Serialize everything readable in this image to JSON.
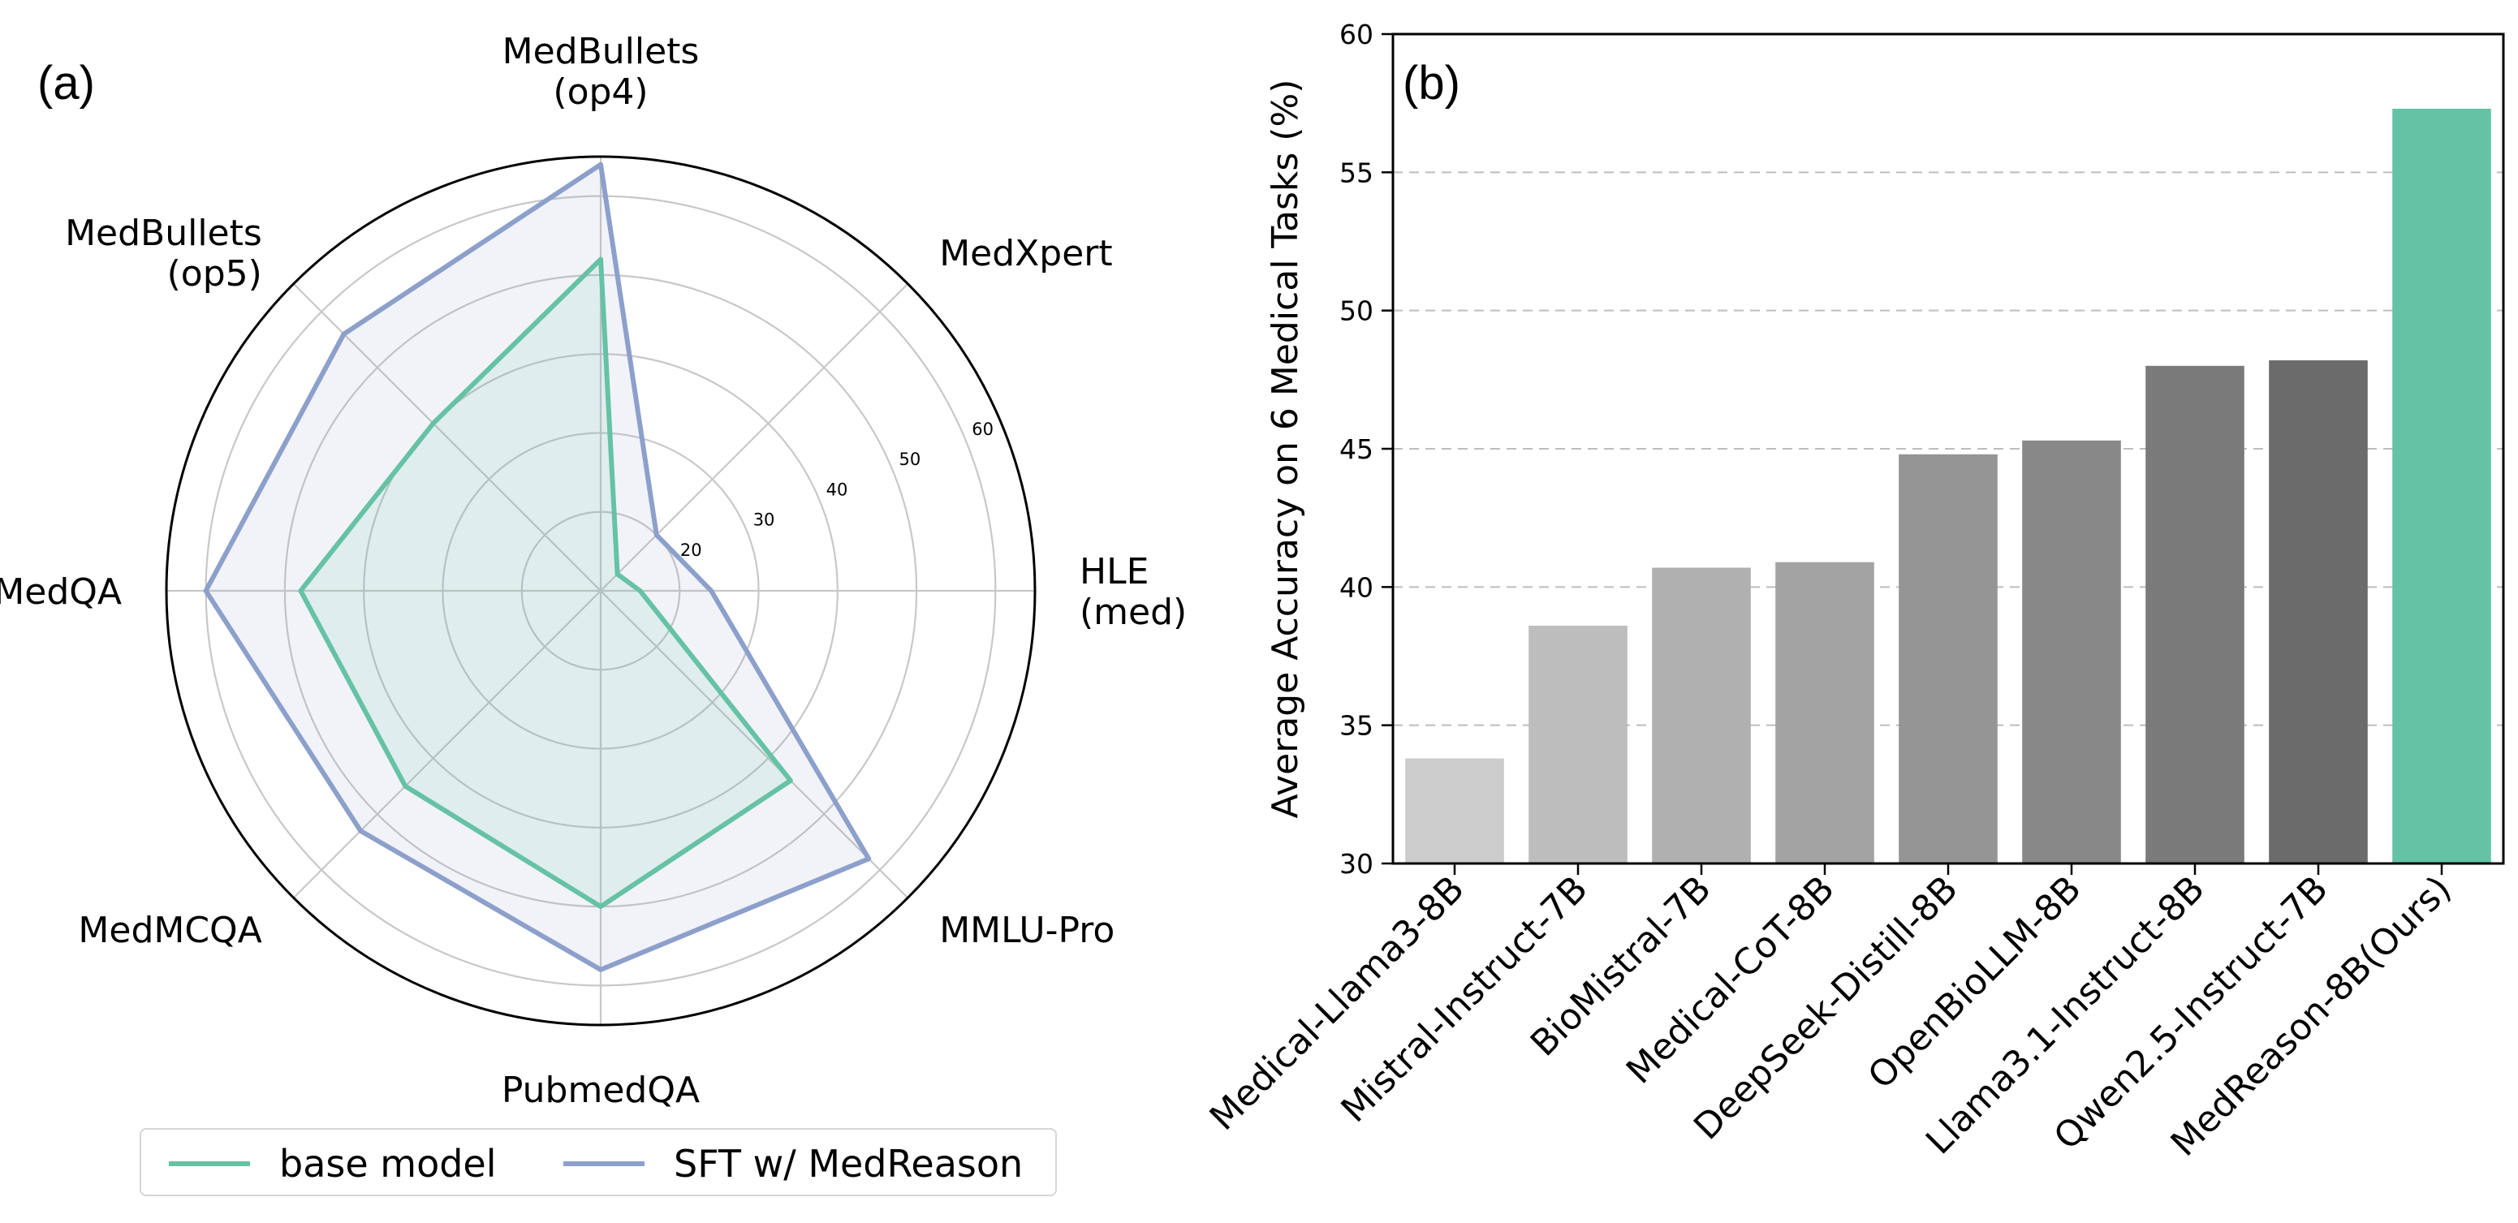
{
  "chart_data": [
    {
      "type": "radar",
      "panel_label": "(a)",
      "axes": [
        "HLE\n(med)",
        "MedXpert",
        "MedBullets\n(op4)",
        "MedBullets\n(op5)",
        "MedQA",
        "MedMCQA",
        "PubmedQA",
        "MMLU-Pro"
      ],
      "rlim": [
        10,
        65
      ],
      "rgrid": [
        20,
        30,
        40,
        50,
        60
      ],
      "grid": true,
      "series": [
        {
          "name": "base model",
          "color": "#66c2a5",
          "values": [
            15,
            13,
            52,
            40,
            48,
            45,
            50,
            44
          ]
        },
        {
          "name": "SFT w/ MedReason",
          "color": "#8da0cb",
          "values": [
            24,
            20,
            64,
            56,
            60,
            53,
            58,
            58
          ]
        }
      ],
      "legend": {
        "placement": "bottom",
        "entries": [
          "base model",
          "SFT w/ MedReason"
        ]
      }
    },
    {
      "type": "bar",
      "panel_label": "(b)",
      "title": "",
      "xlabel": "",
      "ylabel": "Average Accuracy on 6 Medical Tasks (%)",
      "ylim": [
        30,
        60
      ],
      "yticks": [
        30,
        35,
        40,
        45,
        50,
        55,
        60
      ],
      "grid": "y-dashed",
      "categories": [
        "Medical-Llama3-8B",
        "Mistral-Instruct-7B",
        "BioMistral-7B",
        "Medical-CoT-8B",
        "DeepSeek-Distill-8B",
        "OpenBioLLM-8B",
        "Llama3.1-Instruct-8B",
        "Qwen2.5-Instruct-7B",
        "MedReason-8B(Ours)"
      ],
      "values": [
        33.8,
        38.6,
        40.7,
        40.9,
        44.8,
        45.3,
        48.0,
        48.2,
        57.3
      ],
      "colors": [
        "#cccccc",
        "#bdbdbd",
        "#b0b0b0",
        "#a3a3a3",
        "#959595",
        "#888888",
        "#7a7a7a",
        "#6b6b6b",
        "#66c2a5"
      ]
    }
  ]
}
